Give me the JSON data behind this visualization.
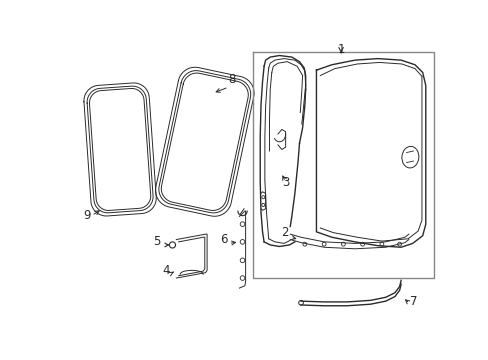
{
  "bg_color": "#ffffff",
  "line_color": "#2a2a2a",
  "box_color": "#888888",
  "fig_width": 4.89,
  "fig_height": 3.6,
  "dpi": 100
}
